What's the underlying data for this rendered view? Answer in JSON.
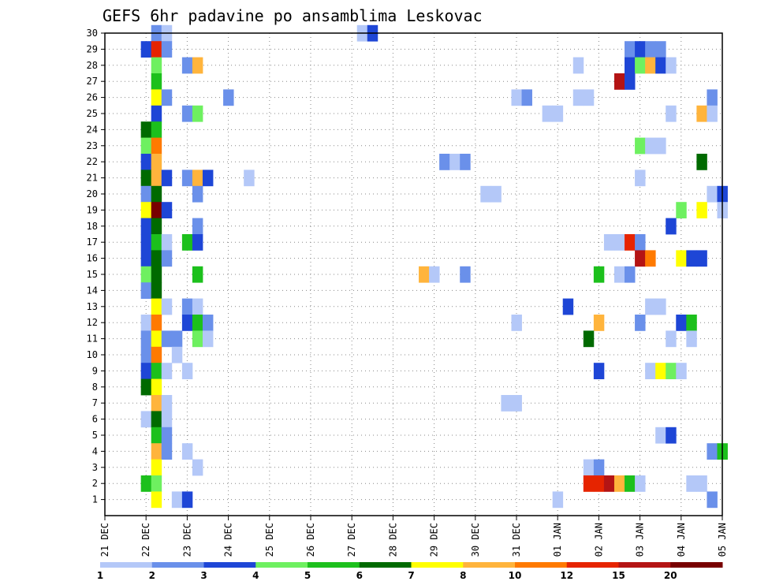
{
  "chart_data": {
    "type": "heatmap",
    "title": "GEFS 6hr padavine po ansamblima Leskovac",
    "xlabel": "",
    "ylabel": "",
    "x_range_days": [
      0,
      15
    ],
    "x_ticks": [
      "21 DEC",
      "22 DEC",
      "23 DEC",
      "24 DEC",
      "25 DEC",
      "26 DEC",
      "27 DEC",
      "28 DEC",
      "29 DEC",
      "30 DEC",
      "31 DEC",
      "01 JAN",
      "02 JAN",
      "03 JAN",
      "04 JAN",
      "05 JAN"
    ],
    "y_range": [
      0,
      30
    ],
    "y_ticks": [
      1,
      2,
      3,
      4,
      5,
      6,
      7,
      8,
      9,
      10,
      11,
      12,
      13,
      14,
      15,
      16,
      17,
      18,
      19,
      20,
      21,
      22,
      23,
      24,
      25,
      26,
      27,
      28,
      29,
      30
    ],
    "grid": true,
    "legend_placement": "bottom",
    "legend": {
      "levels": [
        "1",
        "2",
        "3",
        "4",
        "5",
        "6",
        "7",
        "8",
        "10",
        "12",
        "15",
        "20"
      ],
      "colors": [
        "#b4c8f8",
        "#6a90ea",
        "#1e46d6",
        "#6ef060",
        "#1cc01c",
        "#006a00",
        "#ffff00",
        "#ffb43c",
        "#ff7a00",
        "#e62400",
        "#b41414",
        "#780000"
      ]
    },
    "cells": [
      [
        30,
        1.25,
        1
      ],
      [
        30,
        1.5,
        0
      ],
      [
        30,
        6.25,
        0
      ],
      [
        30,
        6.5,
        2
      ],
      [
        29,
        1,
        2
      ],
      [
        29,
        1.25,
        9
      ],
      [
        29,
        1.5,
        1
      ],
      [
        29,
        12.75,
        1
      ],
      [
        29,
        13,
        2
      ],
      [
        29,
        13.25,
        1
      ],
      [
        29,
        13.5,
        1
      ],
      [
        28,
        1.25,
        3
      ],
      [
        28,
        2,
        1
      ],
      [
        28,
        2.25,
        7
      ],
      [
        28,
        11.5,
        0
      ],
      [
        28,
        12.75,
        2
      ],
      [
        28,
        13,
        3
      ],
      [
        28,
        13.25,
        7
      ],
      [
        28,
        13.5,
        2
      ],
      [
        28,
        13.75,
        0
      ],
      [
        27,
        1.25,
        4
      ],
      [
        27,
        12.5,
        10
      ],
      [
        27,
        12.75,
        2
      ],
      [
        26,
        1.25,
        6
      ],
      [
        26,
        1.5,
        1
      ],
      [
        26,
        3,
        1
      ],
      [
        26,
        10,
        0
      ],
      [
        26,
        10.25,
        1
      ],
      [
        26,
        11.5,
        0
      ],
      [
        26,
        11.75,
        0
      ],
      [
        26,
        14.75,
        1
      ],
      [
        25,
        1.25,
        2
      ],
      [
        25,
        2,
        1
      ],
      [
        25,
        2.25,
        3
      ],
      [
        25,
        10.75,
        0
      ],
      [
        25,
        11,
        0
      ],
      [
        25,
        13.75,
        0
      ],
      [
        25,
        14.5,
        7
      ],
      [
        25,
        14.75,
        0
      ],
      [
        24,
        1,
        5
      ],
      [
        24,
        1.25,
        4
      ],
      [
        23,
        1,
        3
      ],
      [
        23,
        1.25,
        8
      ],
      [
        23,
        13,
        3
      ],
      [
        23,
        13.25,
        0
      ],
      [
        23,
        13.5,
        0
      ],
      [
        22,
        1,
        2
      ],
      [
        22,
        1.25,
        7
      ],
      [
        22,
        8.25,
        1
      ],
      [
        22,
        8.5,
        0
      ],
      [
        22,
        8.75,
        1
      ],
      [
        22,
        14.5,
        5
      ],
      [
        21,
        1,
        5
      ],
      [
        21,
        1.25,
        7
      ],
      [
        21,
        1.5,
        2
      ],
      [
        21,
        2,
        1
      ],
      [
        21,
        2.25,
        7
      ],
      [
        21,
        2.5,
        2
      ],
      [
        21,
        3.5,
        0
      ],
      [
        21,
        13,
        0
      ],
      [
        20,
        1,
        1
      ],
      [
        20,
        1.25,
        5
      ],
      [
        20,
        2.25,
        1
      ],
      [
        20,
        9.25,
        0
      ],
      [
        20,
        9.5,
        0
      ],
      [
        20,
        14.75,
        0
      ],
      [
        20,
        15,
        2
      ],
      [
        19,
        1,
        6
      ],
      [
        19,
        1.25,
        11
      ],
      [
        19,
        1.5,
        2
      ],
      [
        19,
        14,
        3
      ],
      [
        19,
        14.5,
        6
      ],
      [
        19,
        15,
        0
      ],
      [
        18,
        1,
        2
      ],
      [
        18,
        1.25,
        5
      ],
      [
        18,
        2.25,
        1
      ],
      [
        18,
        13.75,
        2
      ],
      [
        17,
        1,
        2
      ],
      [
        17,
        1.25,
        4
      ],
      [
        17,
        1.5,
        0
      ],
      [
        17,
        2,
        4
      ],
      [
        17,
        2.25,
        2
      ],
      [
        17,
        12.25,
        0
      ],
      [
        17,
        12.5,
        0
      ],
      [
        17,
        12.75,
        9
      ],
      [
        17,
        13,
        1
      ],
      [
        16,
        1,
        2
      ],
      [
        16,
        1.25,
        5
      ],
      [
        16,
        1.5,
        1
      ],
      [
        16,
        13,
        10
      ],
      [
        16,
        13.25,
        8
      ],
      [
        16,
        14,
        6
      ],
      [
        16,
        14.25,
        2
      ],
      [
        16,
        14.5,
        2
      ],
      [
        15,
        1,
        3
      ],
      [
        15,
        1.25,
        5
      ],
      [
        15,
        2.25,
        4
      ],
      [
        15,
        7.75,
        7
      ],
      [
        15,
        8,
        0
      ],
      [
        15,
        8.75,
        1
      ],
      [
        15,
        12,
        4
      ],
      [
        15,
        12.5,
        0
      ],
      [
        15,
        12.75,
        1
      ],
      [
        14,
        1,
        1
      ],
      [
        14,
        1.25,
        5
      ],
      [
        13,
        1.25,
        6
      ],
      [
        13,
        1.5,
        0
      ],
      [
        13,
        2,
        1
      ],
      [
        13,
        2.25,
        0
      ],
      [
        13,
        11.25,
        2
      ],
      [
        13,
        13.25,
        0
      ],
      [
        13,
        13.5,
        0
      ],
      [
        12,
        1,
        0
      ],
      [
        12,
        1.25,
        8
      ],
      [
        12,
        2,
        2
      ],
      [
        12,
        2.25,
        4
      ],
      [
        12,
        2.5,
        1
      ],
      [
        12,
        10,
        0
      ],
      [
        12,
        12,
        7
      ],
      [
        12,
        13,
        1
      ],
      [
        12,
        14,
        2
      ],
      [
        12,
        14.25,
        4
      ],
      [
        11,
        1,
        1
      ],
      [
        11,
        1.25,
        6
      ],
      [
        11,
        1.5,
        1
      ],
      [
        11,
        1.75,
        1
      ],
      [
        11,
        2.25,
        3
      ],
      [
        11,
        2.5,
        0
      ],
      [
        11,
        11.75,
        5
      ],
      [
        11,
        13.75,
        0
      ],
      [
        11,
        14.25,
        0
      ],
      [
        10,
        1,
        1
      ],
      [
        10,
        1.25,
        8
      ],
      [
        10,
        1.75,
        0
      ],
      [
        9,
        1,
        2
      ],
      [
        9,
        1.25,
        4
      ],
      [
        9,
        1.5,
        0
      ],
      [
        9,
        2,
        0
      ],
      [
        9,
        12,
        2
      ],
      [
        9,
        13.25,
        0
      ],
      [
        9,
        13.5,
        6
      ],
      [
        9,
        13.75,
        3
      ],
      [
        9,
        14,
        0
      ],
      [
        8,
        1,
        5
      ],
      [
        8,
        1.25,
        6
      ],
      [
        7,
        1.25,
        7
      ],
      [
        7,
        1.5,
        0
      ],
      [
        7,
        9.75,
        0
      ],
      [
        7,
        10,
        0
      ],
      [
        6,
        1,
        0
      ],
      [
        6,
        1.25,
        5
      ],
      [
        6,
        1.5,
        0
      ],
      [
        5,
        1.25,
        4
      ],
      [
        5,
        1.5,
        1
      ],
      [
        5,
        13.5,
        0
      ],
      [
        5,
        13.75,
        2
      ],
      [
        4,
        1.25,
        7
      ],
      [
        4,
        1.5,
        1
      ],
      [
        4,
        2,
        0
      ],
      [
        4,
        14.75,
        1
      ],
      [
        4,
        15,
        4
      ],
      [
        3,
        1.25,
        6
      ],
      [
        3,
        2.25,
        0
      ],
      [
        3,
        11.75,
        0
      ],
      [
        3,
        12,
        1
      ],
      [
        2,
        1,
        4
      ],
      [
        2,
        1.25,
        3
      ],
      [
        2,
        11.75,
        9
      ],
      [
        2,
        12,
        9
      ],
      [
        2,
        12.25,
        10
      ],
      [
        2,
        12.5,
        7
      ],
      [
        2,
        12.75,
        4
      ],
      [
        2,
        13,
        0
      ],
      [
        2,
        14.25,
        0
      ],
      [
        2,
        14.5,
        0
      ],
      [
        1,
        1.25,
        6
      ],
      [
        1,
        1.75,
        0
      ],
      [
        1,
        2,
        2
      ],
      [
        1,
        11,
        0
      ],
      [
        1,
        14.75,
        1
      ]
    ]
  }
}
